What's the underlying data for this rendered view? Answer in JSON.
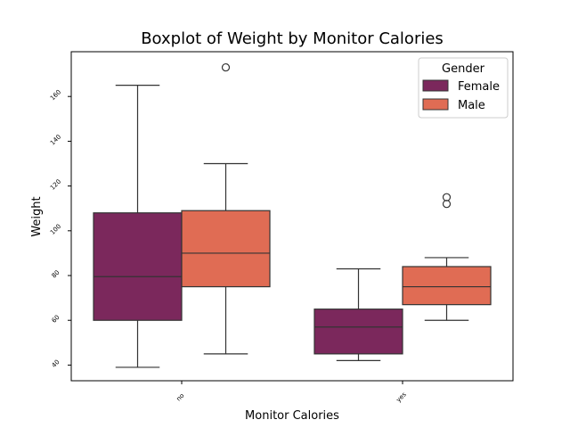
{
  "chart_data": {
    "type": "box",
    "title": "Boxplot of Weight by Monitor Calories",
    "xlabel": "Monitor Calories",
    "ylabel": "Weight",
    "categories": [
      "no",
      "yes"
    ],
    "yticks": [
      40,
      60,
      80,
      100,
      120,
      140,
      160
    ],
    "ylim": [
      33,
      180
    ],
    "grid": false,
    "legend": {
      "title": "Gender",
      "placement": "top-right",
      "entries": [
        "Female",
        "Male"
      ]
    },
    "colors": {
      "Female": "#7b285c",
      "Male": "#e06c54",
      "line": "#333333"
    },
    "series": [
      {
        "name": "Female",
        "boxes": [
          {
            "category": "no",
            "whislo": 39,
            "q1": 60,
            "med": 79.5,
            "q3": 108,
            "whishi": 165,
            "fliers": []
          },
          {
            "category": "yes",
            "whislo": 42,
            "q1": 45,
            "med": 57,
            "q3": 65,
            "whishi": 83,
            "fliers": []
          }
        ]
      },
      {
        "name": "Male",
        "boxes": [
          {
            "category": "no",
            "whislo": 45,
            "q1": 75,
            "med": 90,
            "q3": 109,
            "whishi": 130,
            "fliers": [
              173
            ]
          },
          {
            "category": "yes",
            "whislo": 60,
            "q1": 67,
            "med": 75,
            "q3": 84,
            "whishi": 88,
            "fliers": [
              112,
              115
            ]
          }
        ]
      }
    ]
  }
}
